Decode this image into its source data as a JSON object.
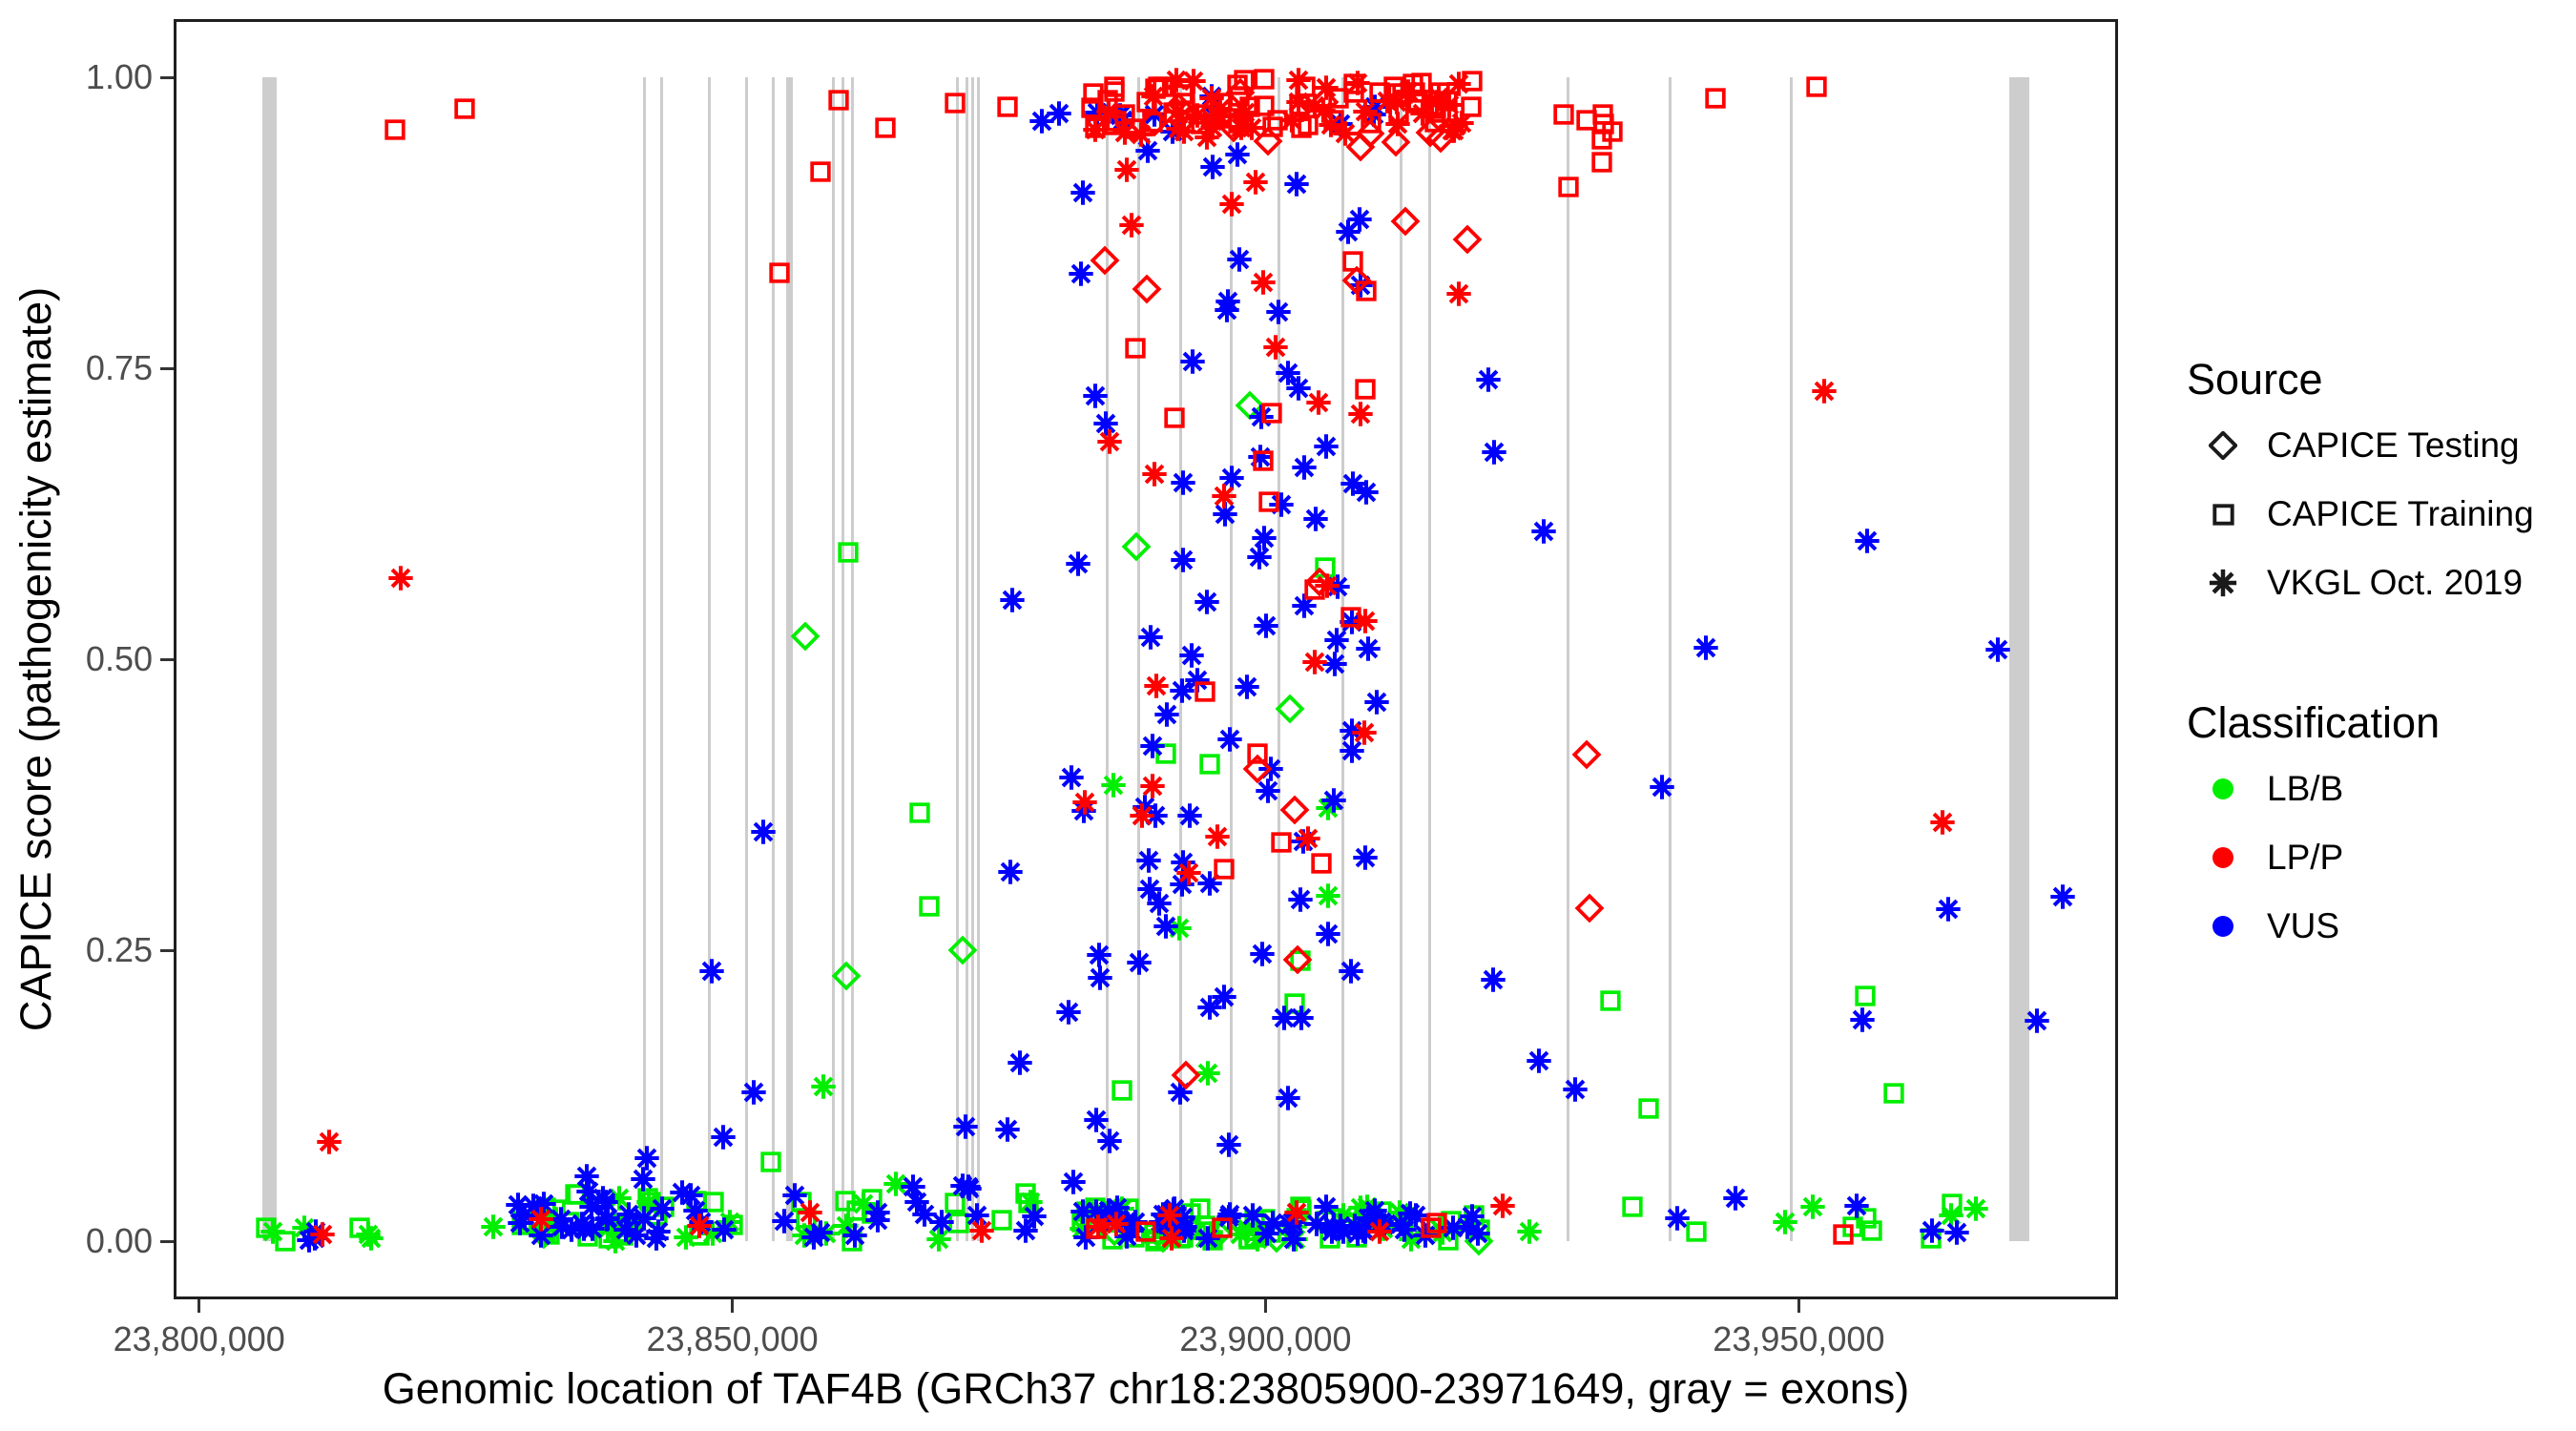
{
  "figure": {
    "x_axis_title": "Genomic location of TAF4B (GRCh37 chr18:23805900-23971649, gray = exons)",
    "y_axis_title": "CAPICE score (pathogenicity estimate)"
  },
  "legend": {
    "source": {
      "title": "Source",
      "items": [
        {
          "label": "CAPICE Testing",
          "marker": "diamond-open"
        },
        {
          "label": "CAPICE Training",
          "marker": "square-open"
        },
        {
          "label": "VKGL Oct. 2019",
          "marker": "asterisk"
        }
      ]
    },
    "classification": {
      "title": "Classification",
      "items": [
        {
          "label": "LB/B",
          "color": "#00EE00"
        },
        {
          "label": "LP/P",
          "color": "#FF0000"
        },
        {
          "label": "VUS",
          "color": "#0000FF"
        }
      ]
    }
  },
  "chart_data": {
    "type": "scatter",
    "title": "",
    "xlabel": "Genomic location of TAF4B (GRCh37 chr18:23805900-23971649, gray = exons)",
    "ylabel": "CAPICE score (pathogenicity estimate)",
    "x_domain": [
      23797613,
      23979936
    ],
    "y_domain": [
      -0.05,
      1.05
    ],
    "grid": "off",
    "legend_position": "right",
    "x_ticks": [
      {
        "value": 23800000,
        "label": "23,800,000"
      },
      {
        "value": 23850000,
        "label": "23,850,000"
      },
      {
        "value": 23900000,
        "label": "23,900,000"
      },
      {
        "value": 23950000,
        "label": "23,950,000"
      }
    ],
    "y_ticks": [
      {
        "value": 0.0,
        "label": "0.00"
      },
      {
        "value": 0.25,
        "label": "0.25"
      },
      {
        "value": 0.5,
        "label": "0.50"
      },
      {
        "value": 0.75,
        "label": "0.75"
      },
      {
        "value": 1.0,
        "label": "1.00"
      }
    ],
    "codes": {
      "source": {
        "T": "CAPICE Testing (open diamond)",
        "R": "CAPICE Training (open square)",
        "V": "VKGL Oct. 2019 (asterisk)"
      },
      "classification": {
        "B": "LB/B",
        "P": "LP/P",
        "U": "VUS"
      }
    },
    "colors": {
      "B": "#00EE00",
      "P": "#FF0000",
      "U": "#0000FF",
      "exon": "#CDCDCD"
    },
    "exons": [
      [
        23805900,
        23807300
      ],
      [
        23841600,
        23841880
      ],
      [
        23843230,
        23843510
      ],
      [
        23847700,
        23847980
      ],
      [
        23851190,
        23851470
      ],
      [
        23853700,
        23853980
      ],
      [
        23855050,
        23855680
      ],
      [
        23859330,
        23859610
      ],
      [
        23860230,
        23860510
      ],
      [
        23861120,
        23861400
      ],
      [
        23870960,
        23871240
      ],
      [
        23871860,
        23872140
      ],
      [
        23872390,
        23872670
      ],
      [
        23872930,
        23873210
      ],
      [
        23885010,
        23885290
      ],
      [
        23887960,
        23888240
      ],
      [
        23891900,
        23892180
      ],
      [
        23896640,
        23896920
      ],
      [
        23901110,
        23901390
      ],
      [
        23907100,
        23907380
      ],
      [
        23912560,
        23912840
      ],
      [
        23915250,
        23915530
      ],
      [
        23928220,
        23928500
      ],
      [
        23937800,
        23938080
      ],
      [
        23949160,
        23949440
      ],
      [
        23969700,
        23971649
      ]
    ],
    "points": [
      [
        23812233,
        0.085,
        "V",
        "P"
      ],
      [
        23818400,
        0.955,
        "R",
        "P"
      ],
      [
        23824900,
        0.973,
        "R",
        "P"
      ],
      [
        23818930,
        0.57,
        "V",
        "P"
      ],
      [
        23854400,
        0.832,
        "R",
        "P"
      ],
      [
        23858250,
        0.919,
        "R",
        "P"
      ],
      [
        23859950,
        0.98,
        "R",
        "P"
      ],
      [
        23864330,
        0.957,
        "R",
        "P"
      ],
      [
        23870860,
        0.978,
        "R",
        "P"
      ],
      [
        23875780,
        0.975,
        "R",
        "P"
      ],
      [
        23879000,
        0.962,
        "V",
        "U"
      ],
      [
        23856876,
        0.52,
        "T",
        "B"
      ],
      [
        23860894,
        0.592,
        "R",
        "B"
      ],
      [
        23860715,
        0.228,
        "T",
        "B"
      ],
      [
        23852858,
        0.352,
        "V",
        "U"
      ],
      [
        23867590,
        0.368,
        "R",
        "B"
      ],
      [
        23868483,
        0.288,
        "R",
        "B"
      ],
      [
        23871608,
        0.25,
        "T",
        "B"
      ],
      [
        23876251,
        0.551,
        "V",
        "U"
      ],
      [
        23876072,
        0.317,
        "V",
        "U"
      ],
      [
        23876965,
        0.153,
        "V",
        "U"
      ],
      [
        23875800,
        0.096,
        "V",
        "U"
      ],
      [
        23848100,
        0.232,
        "V",
        "U"
      ],
      [
        23851968,
        0.128,
        "V",
        "U"
      ],
      [
        23853600,
        0.068,
        "R",
        "B"
      ],
      [
        23871900,
        0.098,
        "V",
        "U"
      ],
      [
        23858572,
        0.133,
        "V",
        "B"
      ],
      [
        23913127,
        0.876,
        "T",
        "P"
      ],
      [
        23918100,
        0.814,
        "V",
        "P"
      ],
      [
        23918900,
        0.861,
        "T",
        "P"
      ],
      [
        23920900,
        0.74,
        "V",
        "U"
      ],
      [
        23921400,
        0.678,
        "V",
        "U"
      ],
      [
        23926100,
        0.61,
        "V",
        "U"
      ],
      [
        23930097,
        0.418,
        "T",
        "P"
      ],
      [
        23930365,
        0.286,
        "T",
        "P"
      ],
      [
        23932329,
        0.207,
        "R",
        "B"
      ],
      [
        23935901,
        0.114,
        "R",
        "B"
      ],
      [
        23937200,
        0.39,
        "V",
        "U"
      ],
      [
        23941250,
        0.51,
        "V",
        "U"
      ],
      [
        23942150,
        0.982,
        "R",
        "P"
      ],
      [
        23951704,
        0.992,
        "R",
        "P"
      ],
      [
        23952418,
        0.73,
        "V",
        "P"
      ],
      [
        23956437,
        0.602,
        "V",
        "U"
      ],
      [
        23963500,
        0.36,
        "V",
        "P"
      ],
      [
        23922260,
        0.03,
        "V",
        "P"
      ],
      [
        23955990,
        0.19,
        "V",
        "U"
      ],
      [
        23964026,
        0.285,
        "V",
        "U"
      ],
      [
        23956258,
        0.211,
        "R",
        "B"
      ],
      [
        23958937,
        0.127,
        "R",
        "B"
      ],
      [
        23968700,
        0.508,
        "V",
        "U"
      ],
      [
        23972329,
        0.189,
        "V",
        "U"
      ],
      [
        23974743,
        0.296,
        "V",
        "U"
      ],
      [
        23921300,
        0.225,
        "V",
        "U"
      ],
      [
        23925600,
        0.155,
        "V",
        "U"
      ],
      [
        23929000,
        0.13,
        "V",
        "U"
      ],
      [
        23827600,
        0.012,
        "V",
        "B"
      ],
      [
        23834000,
        0.012,
        "V",
        "U"
      ],
      [
        23840000,
        0.01,
        "V",
        "U"
      ],
      [
        23810900,
        0.008,
        "V",
        "U"
      ],
      [
        23811600,
        0.006,
        "V",
        "P"
      ]
    ],
    "dense_clusters": [
      {
        "x": [
          23883000,
          23919500
        ],
        "y": [
          0.955,
          1.0
        ],
        "n": 58,
        "source": "R",
        "class": "P"
      },
      {
        "x": [
          23883200,
          23918500
        ],
        "y": [
          0.948,
          1.0
        ],
        "n": 44,
        "source": "V",
        "class": "P"
      },
      {
        "x": [
          23884000,
          23917000
        ],
        "y": [
          0.94,
          1.0
        ],
        "n": 11,
        "source": "T",
        "class": "P"
      },
      {
        "x": [
          23880000,
          23916000
        ],
        "y": [
          0.93,
          1.0
        ],
        "n": 13,
        "source": "V",
        "class": "U"
      },
      {
        "x": [
          23881500,
          23910500
        ],
        "y": [
          0.05,
          0.93
        ],
        "n": 85,
        "source": "V",
        "class": "U"
      },
      {
        "x": [
          23883000,
          23910000
        ],
        "y": [
          0.3,
          0.93
        ],
        "n": 22,
        "source": "V",
        "class": "P"
      },
      {
        "x": [
          23883000,
          23910000
        ],
        "y": [
          0.3,
          0.92
        ],
        "n": 15,
        "source": "R",
        "class": "P"
      },
      {
        "x": [
          23883500,
          23909000
        ],
        "y": [
          0.1,
          0.92
        ],
        "n": 8,
        "source": "T",
        "class": "P"
      },
      {
        "x": [
          23884000,
          23908000
        ],
        "y": [
          0.1,
          0.55
        ],
        "n": 5,
        "source": "V",
        "class": "B"
      },
      {
        "x": [
          23883500,
          23909500
        ],
        "y": [
          0.05,
          0.6
        ],
        "n": 6,
        "source": "R",
        "class": "B"
      },
      {
        "x": [
          23885000,
          23906000
        ],
        "y": [
          0.4,
          0.75
        ],
        "n": 3,
        "source": "T",
        "class": "B"
      },
      {
        "x": [
          23882500,
          23921000
        ],
        "y": [
          0.0,
          0.03
        ],
        "n": 40,
        "source": "R",
        "class": "B"
      },
      {
        "x": [
          23882500,
          23921000
        ],
        "y": [
          0.0,
          0.03
        ],
        "n": 26,
        "source": "V",
        "class": "B"
      },
      {
        "x": [
          23882500,
          23921000
        ],
        "y": [
          0.0,
          0.03
        ],
        "n": 55,
        "source": "V",
        "class": "U"
      },
      {
        "x": [
          23883000,
          23920000
        ],
        "y": [
          0.0,
          0.025
        ],
        "n": 6,
        "source": "V",
        "class": "P"
      },
      {
        "x": [
          23884000,
          23919000
        ],
        "y": [
          0.0,
          0.02
        ],
        "n": 5,
        "source": "R",
        "class": "P"
      },
      {
        "x": [
          23883000,
          23920000
        ],
        "y": [
          0.0,
          0.02
        ],
        "n": 6,
        "source": "T",
        "class": "B"
      },
      {
        "x": [
          23829300,
          23850200
        ],
        "y": [
          0.0,
          0.045
        ],
        "n": 20,
        "source": "R",
        "class": "B"
      },
      {
        "x": [
          23829300,
          23850200
        ],
        "y": [
          0.0,
          0.045
        ],
        "n": 12,
        "source": "V",
        "class": "B"
      },
      {
        "x": [
          23829300,
          23850200
        ],
        "y": [
          0.0,
          0.045
        ],
        "n": 26,
        "source": "V",
        "class": "U"
      },
      {
        "x": [
          23830000,
          23849500
        ],
        "y": [
          0.0,
          0.03
        ],
        "n": 4,
        "source": "T",
        "class": "B"
      },
      {
        "x": [
          23831000,
          23849000
        ],
        "y": [
          0.0,
          0.02
        ],
        "n": 2,
        "source": "V",
        "class": "P"
      },
      {
        "x": [
          23829300,
          23850200
        ],
        "y": [
          0.03,
          0.1
        ],
        "n": 6,
        "source": "V",
        "class": "U"
      },
      {
        "x": [
          23852000,
          23878500
        ],
        "y": [
          0.0,
          0.05
        ],
        "n": 12,
        "source": "R",
        "class": "B"
      },
      {
        "x": [
          23852000,
          23878500
        ],
        "y": [
          0.0,
          0.05
        ],
        "n": 7,
        "source": "V",
        "class": "B"
      },
      {
        "x": [
          23852000,
          23878500
        ],
        "y": [
          0.0,
          0.05
        ],
        "n": 17,
        "source": "V",
        "class": "U"
      },
      {
        "x": [
          23853000,
          23877000
        ],
        "y": [
          0.0,
          0.03
        ],
        "n": 2,
        "source": "V",
        "class": "P"
      },
      {
        "x": [
          23922500,
          23967500
        ],
        "y": [
          0.0,
          0.035
        ],
        "n": 7,
        "source": "R",
        "class": "B"
      },
      {
        "x": [
          23922500,
          23967500
        ],
        "y": [
          0.0,
          0.035
        ],
        "n": 5,
        "source": "V",
        "class": "B"
      },
      {
        "x": [
          23922500,
          23967500
        ],
        "y": [
          0.0,
          0.045
        ],
        "n": 5,
        "source": "V",
        "class": "U"
      },
      {
        "x": [
          23925000,
          23965000
        ],
        "y": [
          0.0,
          0.02
        ],
        "n": 1,
        "source": "R",
        "class": "P"
      },
      {
        "x": [
          23805700,
          23816500
        ],
        "y": [
          0.0,
          0.012
        ],
        "n": 3,
        "source": "R",
        "class": "B"
      },
      {
        "x": [
          23805700,
          23816500
        ],
        "y": [
          0.0,
          0.012
        ],
        "n": 4,
        "source": "V",
        "class": "B"
      },
      {
        "x": [
          23805700,
          23816500
        ],
        "y": [
          0.0,
          0.012
        ],
        "n": 2,
        "source": "V",
        "class": "U"
      },
      {
        "x": [
          23927800,
          23934300
        ],
        "y": [
          0.905,
          1.0
        ],
        "n": 8,
        "source": "R",
        "class": "P"
      }
    ]
  }
}
